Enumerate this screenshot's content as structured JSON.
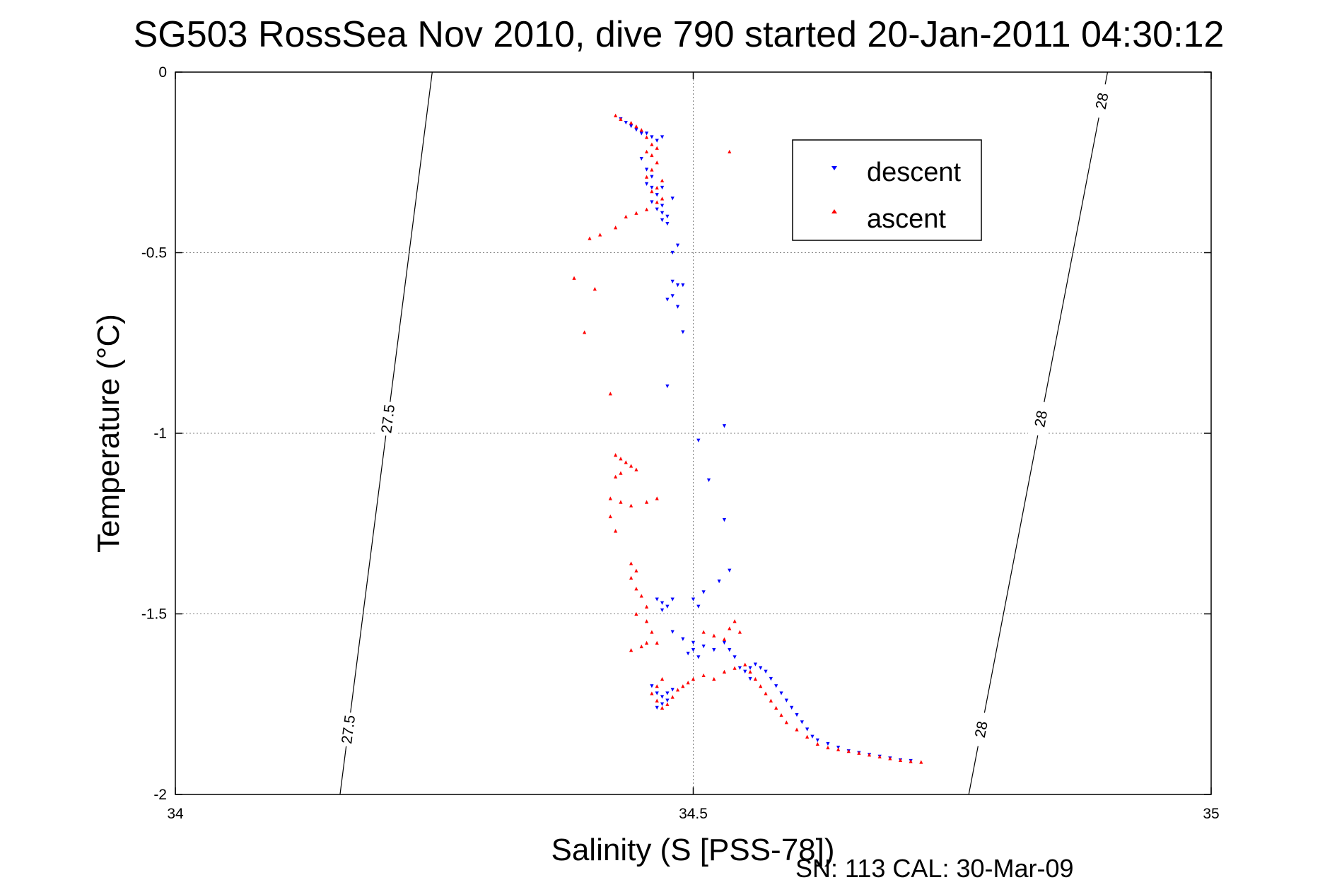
{
  "chart_data": {
    "type": "scatter",
    "title": "SG503 RossSea Nov 2010, dive 790 started 20-Jan-2011 04:30:12",
    "xlabel": "Salinity (S [PSS-78])",
    "ylabel": "Temperature (°C)",
    "footer": "SN: 113  CAL: 30-Mar-09",
    "xlim": [
      34,
      35
    ],
    "ylim": [
      -2,
      0
    ],
    "xticks": [
      34,
      34.5,
      35
    ],
    "xtick_labels": [
      "34",
      "34.5",
      "35"
    ],
    "yticks": [
      0,
      -0.5,
      -1,
      -1.5,
      -2
    ],
    "ytick_labels": [
      "0",
      "-0.5",
      "-1",
      "-1.5",
      "-2"
    ],
    "grid": true,
    "legend_position": "upper-right",
    "colors": {
      "descent": "#0000ff",
      "ascent": "#ff0000",
      "axes": "#000000",
      "grid": "#7f7f7f"
    },
    "density_contours": [
      {
        "value": 27.5,
        "labels": [
          "27.5",
          "27.5"
        ],
        "points": [
          [
            34.248,
            0
          ],
          [
            34.159,
            -2
          ]
        ]
      },
      {
        "value": 28,
        "labels": [
          "28",
          "28",
          "28"
        ],
        "points": [
          [
            34.9,
            0
          ],
          [
            34.766,
            -2
          ]
        ]
      }
    ],
    "series": [
      {
        "name": "descent",
        "marker": "triangle-down",
        "color": "#0000ff",
        "points": [
          [
            34.43,
            -0.13
          ],
          [
            34.435,
            -0.14
          ],
          [
            34.44,
            -0.15
          ],
          [
            34.445,
            -0.16
          ],
          [
            34.45,
            -0.17
          ],
          [
            34.455,
            -0.17
          ],
          [
            34.46,
            -0.18
          ],
          [
            34.465,
            -0.19
          ],
          [
            34.47,
            -0.18
          ],
          [
            34.45,
            -0.24
          ],
          [
            34.455,
            -0.27
          ],
          [
            34.46,
            -0.29
          ],
          [
            34.455,
            -0.31
          ],
          [
            34.46,
            -0.32
          ],
          [
            34.465,
            -0.34
          ],
          [
            34.46,
            -0.36
          ],
          [
            34.47,
            -0.37
          ],
          [
            34.465,
            -0.38
          ],
          [
            34.47,
            -0.39
          ],
          [
            34.475,
            -0.4
          ],
          [
            34.47,
            -0.41
          ],
          [
            34.475,
            -0.42
          ],
          [
            34.48,
            -0.35
          ],
          [
            34.47,
            -0.32
          ],
          [
            34.48,
            -0.5
          ],
          [
            34.485,
            -0.48
          ],
          [
            34.48,
            -0.58
          ],
          [
            34.485,
            -0.59
          ],
          [
            34.49,
            -0.59
          ],
          [
            34.48,
            -0.62
          ],
          [
            34.475,
            -0.63
          ],
          [
            34.485,
            -0.65
          ],
          [
            34.49,
            -0.72
          ],
          [
            34.475,
            -0.87
          ],
          [
            34.53,
            -0.98
          ],
          [
            34.505,
            -1.02
          ],
          [
            34.515,
            -1.13
          ],
          [
            34.53,
            -1.24
          ],
          [
            34.535,
            -1.38
          ],
          [
            34.525,
            -1.41
          ],
          [
            34.465,
            -1.46
          ],
          [
            34.47,
            -1.47
          ],
          [
            34.475,
            -1.48
          ],
          [
            34.47,
            -1.49
          ],
          [
            34.48,
            -1.46
          ],
          [
            34.5,
            -1.46
          ],
          [
            34.505,
            -1.48
          ],
          [
            34.51,
            -1.44
          ],
          [
            34.48,
            -1.55
          ],
          [
            34.49,
            -1.57
          ],
          [
            34.5,
            -1.58
          ],
          [
            34.51,
            -1.59
          ],
          [
            34.5,
            -1.6
          ],
          [
            34.495,
            -1.61
          ],
          [
            34.505,
            -1.62
          ],
          [
            34.52,
            -1.6
          ],
          [
            34.53,
            -1.58
          ],
          [
            34.535,
            -1.6
          ],
          [
            34.54,
            -1.62
          ],
          [
            34.545,
            -1.65
          ],
          [
            34.55,
            -1.66
          ],
          [
            34.555,
            -1.68
          ],
          [
            34.46,
            -1.7
          ],
          [
            34.465,
            -1.72
          ],
          [
            34.47,
            -1.73
          ],
          [
            34.475,
            -1.74
          ],
          [
            34.47,
            -1.75
          ],
          [
            34.465,
            -1.76
          ],
          [
            34.475,
            -1.72
          ],
          [
            34.48,
            -1.71
          ],
          [
            34.555,
            -1.65
          ],
          [
            34.56,
            -1.64
          ],
          [
            34.565,
            -1.65
          ],
          [
            34.57,
            -1.66
          ],
          [
            34.575,
            -1.68
          ],
          [
            34.58,
            -1.7
          ],
          [
            34.585,
            -1.72
          ],
          [
            34.59,
            -1.74
          ],
          [
            34.595,
            -1.76
          ],
          [
            34.6,
            -1.78
          ],
          [
            34.605,
            -1.8
          ],
          [
            34.61,
            -1.82
          ],
          [
            34.615,
            -1.84
          ],
          [
            34.62,
            -1.85
          ],
          [
            34.63,
            -1.86
          ],
          [
            34.64,
            -1.87
          ],
          [
            34.65,
            -1.88
          ],
          [
            34.66,
            -1.885
          ],
          [
            34.67,
            -1.89
          ],
          [
            34.68,
            -1.895
          ],
          [
            34.69,
            -1.9
          ],
          [
            34.7,
            -1.905
          ],
          [
            34.71,
            -1.907
          ]
        ]
      },
      {
        "name": "ascent",
        "marker": "triangle-up",
        "color": "#ff0000",
        "points": [
          [
            34.425,
            -0.12
          ],
          [
            34.43,
            -0.13
          ],
          [
            34.44,
            -0.14
          ],
          [
            34.445,
            -0.15
          ],
          [
            34.45,
            -0.16
          ],
          [
            34.455,
            -0.18
          ],
          [
            34.46,
            -0.2
          ],
          [
            34.465,
            -0.21
          ],
          [
            34.455,
            -0.22
          ],
          [
            34.46,
            -0.23
          ],
          [
            34.465,
            -0.25
          ],
          [
            34.46,
            -0.27
          ],
          [
            34.455,
            -0.29
          ],
          [
            34.47,
            -0.3
          ],
          [
            34.465,
            -0.32
          ],
          [
            34.46,
            -0.33
          ],
          [
            34.47,
            -0.35
          ],
          [
            34.465,
            -0.36
          ],
          [
            34.455,
            -0.38
          ],
          [
            34.445,
            -0.39
          ],
          [
            34.435,
            -0.4
          ],
          [
            34.425,
            -0.43
          ],
          [
            34.41,
            -0.45
          ],
          [
            34.535,
            -0.22
          ],
          [
            34.4,
            -0.46
          ],
          [
            34.385,
            -0.57
          ],
          [
            34.405,
            -0.6
          ],
          [
            34.395,
            -0.72
          ],
          [
            34.42,
            -0.89
          ],
          [
            34.425,
            -1.06
          ],
          [
            34.43,
            -1.07
          ],
          [
            34.435,
            -1.08
          ],
          [
            34.44,
            -1.09
          ],
          [
            34.445,
            -1.1
          ],
          [
            34.43,
            -1.11
          ],
          [
            34.425,
            -1.12
          ],
          [
            34.42,
            -1.18
          ],
          [
            34.43,
            -1.19
          ],
          [
            34.44,
            -1.2
          ],
          [
            34.455,
            -1.19
          ],
          [
            34.465,
            -1.18
          ],
          [
            34.42,
            -1.23
          ],
          [
            34.425,
            -1.27
          ],
          [
            34.44,
            -1.36
          ],
          [
            34.445,
            -1.38
          ],
          [
            34.44,
            -1.4
          ],
          [
            34.445,
            -1.43
          ],
          [
            34.45,
            -1.45
          ],
          [
            34.455,
            -1.48
          ],
          [
            34.445,
            -1.5
          ],
          [
            34.455,
            -1.52
          ],
          [
            34.46,
            -1.55
          ],
          [
            34.455,
            -1.58
          ],
          [
            34.45,
            -1.59
          ],
          [
            34.44,
            -1.6
          ],
          [
            34.465,
            -1.58
          ],
          [
            34.47,
            -1.68
          ],
          [
            34.465,
            -1.7
          ],
          [
            34.46,
            -1.72
          ],
          [
            34.465,
            -1.74
          ],
          [
            34.47,
            -1.76
          ],
          [
            34.475,
            -1.75
          ],
          [
            34.48,
            -1.73
          ],
          [
            34.485,
            -1.71
          ],
          [
            34.49,
            -1.7
          ],
          [
            34.495,
            -1.69
          ],
          [
            34.5,
            -1.68
          ],
          [
            34.51,
            -1.67
          ],
          [
            34.52,
            -1.68
          ],
          [
            34.53,
            -1.66
          ],
          [
            34.54,
            -1.65
          ],
          [
            34.55,
            -1.64
          ],
          [
            34.51,
            -1.55
          ],
          [
            34.52,
            -1.56
          ],
          [
            34.53,
            -1.57
          ],
          [
            34.535,
            -1.54
          ],
          [
            34.54,
            -1.52
          ],
          [
            34.545,
            -1.55
          ],
          [
            34.555,
            -1.66
          ],
          [
            34.56,
            -1.68
          ],
          [
            34.565,
            -1.7
          ],
          [
            34.57,
            -1.72
          ],
          [
            34.575,
            -1.74
          ],
          [
            34.58,
            -1.76
          ],
          [
            34.585,
            -1.78
          ],
          [
            34.59,
            -1.8
          ],
          [
            34.6,
            -1.82
          ],
          [
            34.61,
            -1.84
          ],
          [
            34.62,
            -1.86
          ],
          [
            34.63,
            -1.87
          ],
          [
            34.64,
            -1.875
          ],
          [
            34.65,
            -1.88
          ],
          [
            34.66,
            -1.885
          ],
          [
            34.67,
            -1.89
          ],
          [
            34.68,
            -1.895
          ],
          [
            34.69,
            -1.9
          ],
          [
            34.7,
            -1.905
          ],
          [
            34.71,
            -1.908
          ],
          [
            34.72,
            -1.91
          ]
        ]
      }
    ]
  }
}
